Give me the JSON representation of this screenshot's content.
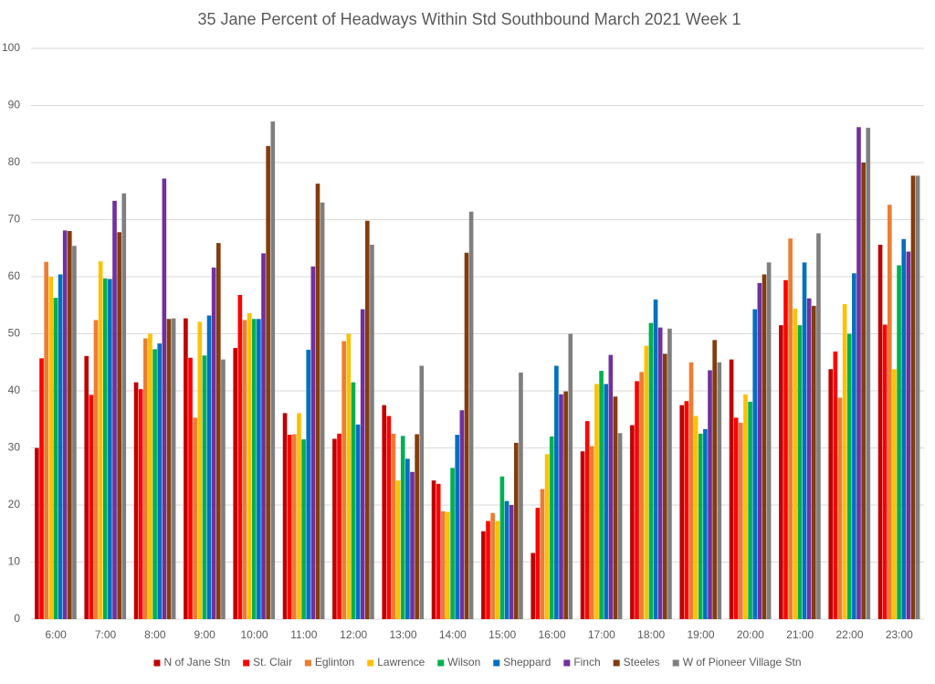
{
  "chart_data": {
    "type": "bar",
    "title": "35 Jane  Percent of Headways Within Std Southbound March 2021 Week 1",
    "categories": [
      "6:00",
      "7:00",
      "8:00",
      "9:00",
      "10:00",
      "11:00",
      "12:00",
      "13:00",
      "14:00",
      "15:00",
      "16:00",
      "17:00",
      "18:00",
      "19:00",
      "20:00",
      "21:00",
      "22:00",
      "23:00"
    ],
    "series": [
      {
        "name": "N of Jane Stn",
        "color": "#c00000",
        "values": [
          30,
          46.1,
          41.5,
          52.7,
          47.5,
          36.1,
          31.6,
          37.5,
          24.3,
          15.4,
          11.6,
          29.4,
          34,
          37.5,
          45.5,
          51.5,
          43.8,
          65.6
        ]
      },
      {
        "name": "St. Clair",
        "color": "#ff0000",
        "values": [
          45.7,
          39.3,
          40.3,
          45.8,
          56.8,
          32.3,
          32.5,
          35.6,
          23.7,
          17.2,
          19.5,
          34.7,
          41.7,
          38.2,
          35.3,
          59.4,
          46.9,
          51.6
        ]
      },
      {
        "name": "Eglinton",
        "color": "#ed7d31",
        "values": [
          62.6,
          52.4,
          49.2,
          35.3,
          52.4,
          32.4,
          48.7,
          32.5,
          18.9,
          18.6,
          22.8,
          30.3,
          43.3,
          45,
          34.4,
          66.7,
          38.8,
          72.6
        ]
      },
      {
        "name": "Lawrence",
        "color": "#ffc000",
        "values": [
          60,
          62.7,
          50,
          52.1,
          53.6,
          36.1,
          50,
          24.3,
          18.8,
          17.2,
          28.9,
          41.2,
          47.9,
          35.6,
          39.4,
          54.4,
          55.2,
          43.8
        ]
      },
      {
        "name": "Wilson",
        "color": "#00b050",
        "values": [
          56.3,
          59.7,
          47.3,
          46.2,
          52.6,
          31.5,
          41.5,
          32.1,
          26.5,
          25,
          32,
          43.5,
          51.9,
          32.5,
          38.1,
          51.5,
          50,
          62
        ]
      },
      {
        "name": "Sheppard",
        "color": "#0070c0",
        "values": [
          60.4,
          59.6,
          48.3,
          53.2,
          52.6,
          47.2,
          34.1,
          28.1,
          32.3,
          20.7,
          44.4,
          41.2,
          56,
          33.3,
          54.3,
          62.5,
          60.6,
          66.6
        ]
      },
      {
        "name": "Finch",
        "color": "#7030a0",
        "values": [
          68.1,
          73.3,
          77.2,
          61.6,
          64.1,
          61.8,
          54.3,
          25.8,
          36.6,
          20,
          39.4,
          46.3,
          51.1,
          43.6,
          58.9,
          56.2,
          86.2,
          64.4
        ]
      },
      {
        "name": "Steeles",
        "color": "#843c0c",
        "values": [
          68,
          67.8,
          52.6,
          65.9,
          82.9,
          76.3,
          69.8,
          32.4,
          64.2,
          30.9,
          39.9,
          39,
          46.5,
          48.9,
          60.4,
          54.9,
          80,
          77.7
        ]
      },
      {
        "name": "W of Pioneer Village Stn",
        "color": "#7f7f7f",
        "values": [
          65.4,
          74.6,
          52.7,
          45.5,
          87.2,
          73,
          65.6,
          44.4,
          71.4,
          43.2,
          50,
          32.6,
          50.9,
          45,
          62.5,
          67.6,
          86.1,
          77.7
        ]
      }
    ],
    "ylim": [
      0,
      100
    ],
    "yticks": [
      0,
      10,
      20,
      30,
      40,
      50,
      60,
      70,
      80,
      90,
      100
    ],
    "grid": true,
    "legend": "bottom"
  }
}
